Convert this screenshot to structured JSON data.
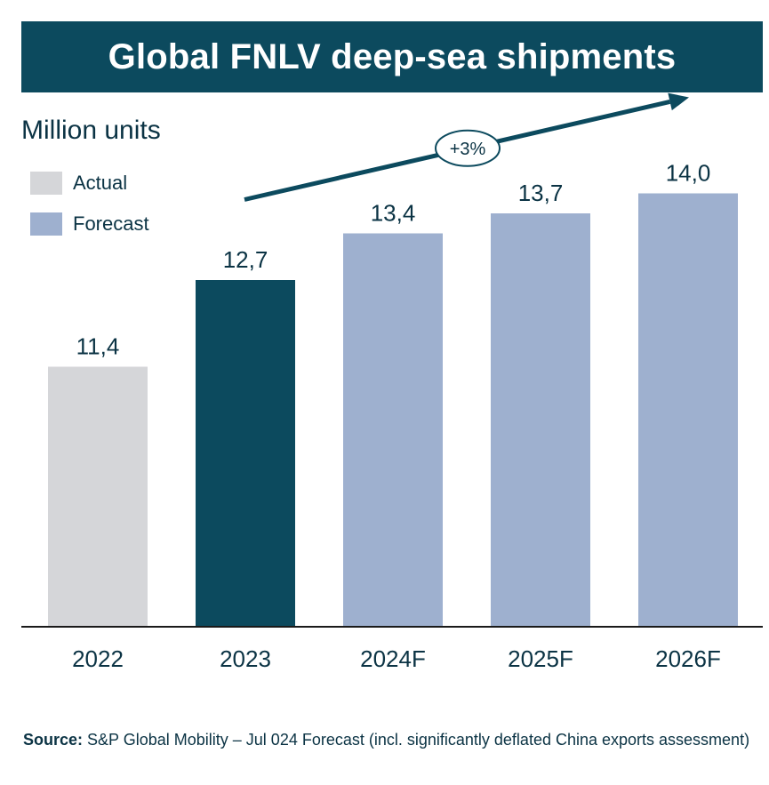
{
  "title": "Global FNLV deep-sea shipments",
  "units_label": "Million units",
  "legend": [
    {
      "label": "Actual",
      "color": "#d5d6d9"
    },
    {
      "label": "Forecast",
      "color": "#9eb0cf"
    }
  ],
  "chart_data": {
    "type": "bar",
    "categories": [
      "2022",
      "2023",
      "2024F",
      "2025F",
      "2026F"
    ],
    "values": [
      11.4,
      12.7,
      13.4,
      13.7,
      14.0
    ],
    "value_labels": [
      "11,4",
      "12,7",
      "13,4",
      "13,7",
      "14,0"
    ],
    "bar_colors": [
      "#d5d6d9",
      "#0c4a5e",
      "#9eb0cf",
      "#9eb0cf",
      "#9eb0cf"
    ],
    "ylabel": "Million units",
    "ylim": [
      7.5,
      14.5
    ],
    "annotation": "+3%",
    "grid": false,
    "legend_position": "top-left"
  },
  "source": {
    "label": "Source:",
    "text": "S&P Global Mobility – Jul 024 Forecast (incl. significantly deflated China exports assessment)"
  }
}
